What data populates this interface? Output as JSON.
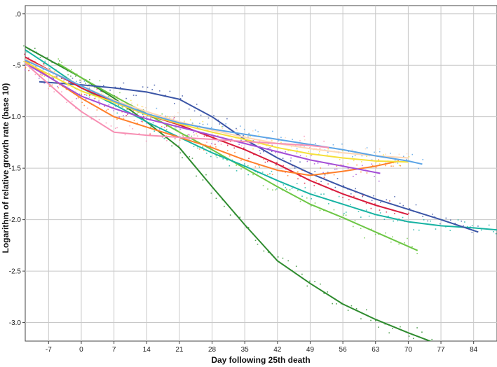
{
  "chart_data": {
    "type": "line",
    "title": "",
    "xlabel": "Day following 25th death",
    "ylabel": "Logarithm of relative growth rate (base 10)",
    "xlim": [
      -12,
      89
    ],
    "ylim": [
      -3.18,
      0.08
    ],
    "xticks": [
      -7,
      0,
      7,
      14,
      21,
      28,
      35,
      42,
      49,
      56,
      63,
      70,
      77,
      84
    ],
    "xtick_labels": [
      "-7",
      "0",
      "7",
      "14",
      "21",
      "28",
      "35",
      "42",
      "49",
      "56",
      "63",
      "70",
      "77",
      "84"
    ],
    "yticks": [
      0,
      -0.5,
      -1.0,
      -1.5,
      -2.0,
      -2.5,
      -3.0
    ],
    "ytick_labels": [
      ".0",
      "-.5",
      "-1.0",
      "-1.5",
      "-2.0",
      "-2.5",
      "-3.0"
    ],
    "grid": true,
    "legend": "none",
    "series": [
      {
        "color": "#2e8b2e",
        "x": [
          -12,
          0,
          7,
          14,
          21,
          28,
          35,
          42,
          49,
          56,
          63,
          70,
          77
        ],
        "y": [
          -0.32,
          -0.62,
          -0.82,
          -1.05,
          -1.3,
          -1.68,
          -2.05,
          -2.4,
          -2.62,
          -2.82,
          -2.97,
          -3.1,
          -3.22
        ]
      },
      {
        "color": "#6cc644",
        "x": [
          -5,
          0,
          7,
          14,
          21,
          28,
          35,
          42,
          49,
          56,
          63,
          72
        ],
        "y": [
          -0.48,
          -0.62,
          -0.8,
          -0.97,
          -1.15,
          -1.32,
          -1.5,
          -1.68,
          -1.85,
          -1.98,
          -2.12,
          -2.3
        ]
      },
      {
        "color": "#17b3a3",
        "x": [
          -12,
          -7,
          0,
          7,
          14,
          21,
          28,
          35,
          42,
          49,
          56,
          63,
          70,
          77,
          84,
          89
        ],
        "y": [
          -0.35,
          -0.5,
          -0.72,
          -0.88,
          -1.05,
          -1.2,
          -1.35,
          -1.48,
          -1.62,
          -1.75,
          -1.85,
          -1.95,
          -2.02,
          -2.06,
          -2.08,
          -2.1
        ]
      },
      {
        "color": "#3b55a6",
        "x": [
          -9,
          0,
          7,
          14,
          21,
          28,
          35,
          42,
          49,
          56,
          63,
          70,
          77,
          85
        ],
        "y": [
          -0.66,
          -0.69,
          -0.72,
          -0.76,
          -0.83,
          -1.0,
          -1.22,
          -1.4,
          -1.55,
          -1.68,
          -1.8,
          -1.9,
          -2.0,
          -2.12
        ]
      },
      {
        "color": "#d81b3c",
        "x": [
          -12,
          0,
          7,
          14,
          21,
          28,
          35,
          42,
          49,
          56,
          63,
          70
        ],
        "y": [
          -0.42,
          -0.72,
          -0.86,
          -0.98,
          -1.08,
          -1.2,
          -1.32,
          -1.46,
          -1.62,
          -1.75,
          -1.86,
          -1.95
        ]
      },
      {
        "color": "#ff7f2a",
        "x": [
          -12,
          0,
          7,
          14,
          21,
          28,
          35,
          42,
          49,
          56,
          63,
          68
        ],
        "y": [
          -0.46,
          -0.82,
          -1.0,
          -1.1,
          -1.2,
          -1.3,
          -1.42,
          -1.52,
          -1.57,
          -1.53,
          -1.48,
          -1.43
        ]
      },
      {
        "color": "#a44dd6",
        "x": [
          -12,
          0,
          7,
          14,
          21,
          28,
          35,
          42,
          49,
          56,
          64
        ],
        "y": [
          -0.48,
          -0.8,
          -0.92,
          -1.02,
          -1.1,
          -1.18,
          -1.26,
          -1.34,
          -1.42,
          -1.48,
          -1.55
        ]
      },
      {
        "color": "#f5e03a",
        "x": [
          -12,
          0,
          7,
          14,
          21,
          28,
          35,
          42,
          49,
          56,
          63,
          70
        ],
        "y": [
          -0.47,
          -0.75,
          -0.86,
          -0.98,
          -1.07,
          -1.15,
          -1.22,
          -1.3,
          -1.36,
          -1.4,
          -1.43,
          -1.44
        ]
      },
      {
        "color": "#ffd7b5",
        "x": [
          -12,
          0,
          7,
          14,
          21,
          28,
          35,
          42,
          49,
          56,
          63,
          70
        ],
        "y": [
          -0.44,
          -0.7,
          -0.84,
          -0.95,
          -1.05,
          -1.13,
          -1.2,
          -1.26,
          -1.31,
          -1.35,
          -1.38,
          -1.4
        ]
      },
      {
        "color": "#5ba4e6",
        "x": [
          -12,
          0,
          7,
          14,
          21,
          28,
          35,
          42,
          49,
          56,
          63,
          70,
          73
        ],
        "y": [
          -0.45,
          -0.7,
          -0.85,
          -0.97,
          -1.06,
          -1.12,
          -1.17,
          -1.22,
          -1.27,
          -1.32,
          -1.38,
          -1.43,
          -1.46
        ]
      },
      {
        "color": "#f78fb3",
        "x": [
          -12,
          -7,
          -3,
          0,
          7,
          14,
          21,
          28,
          35,
          42,
          49,
          53
        ],
        "y": [
          -0.48,
          -0.68,
          -0.84,
          -0.95,
          -1.15,
          -1.18,
          -1.2,
          -1.22,
          -1.24,
          -1.26,
          -1.28,
          -1.3
        ]
      }
    ]
  }
}
